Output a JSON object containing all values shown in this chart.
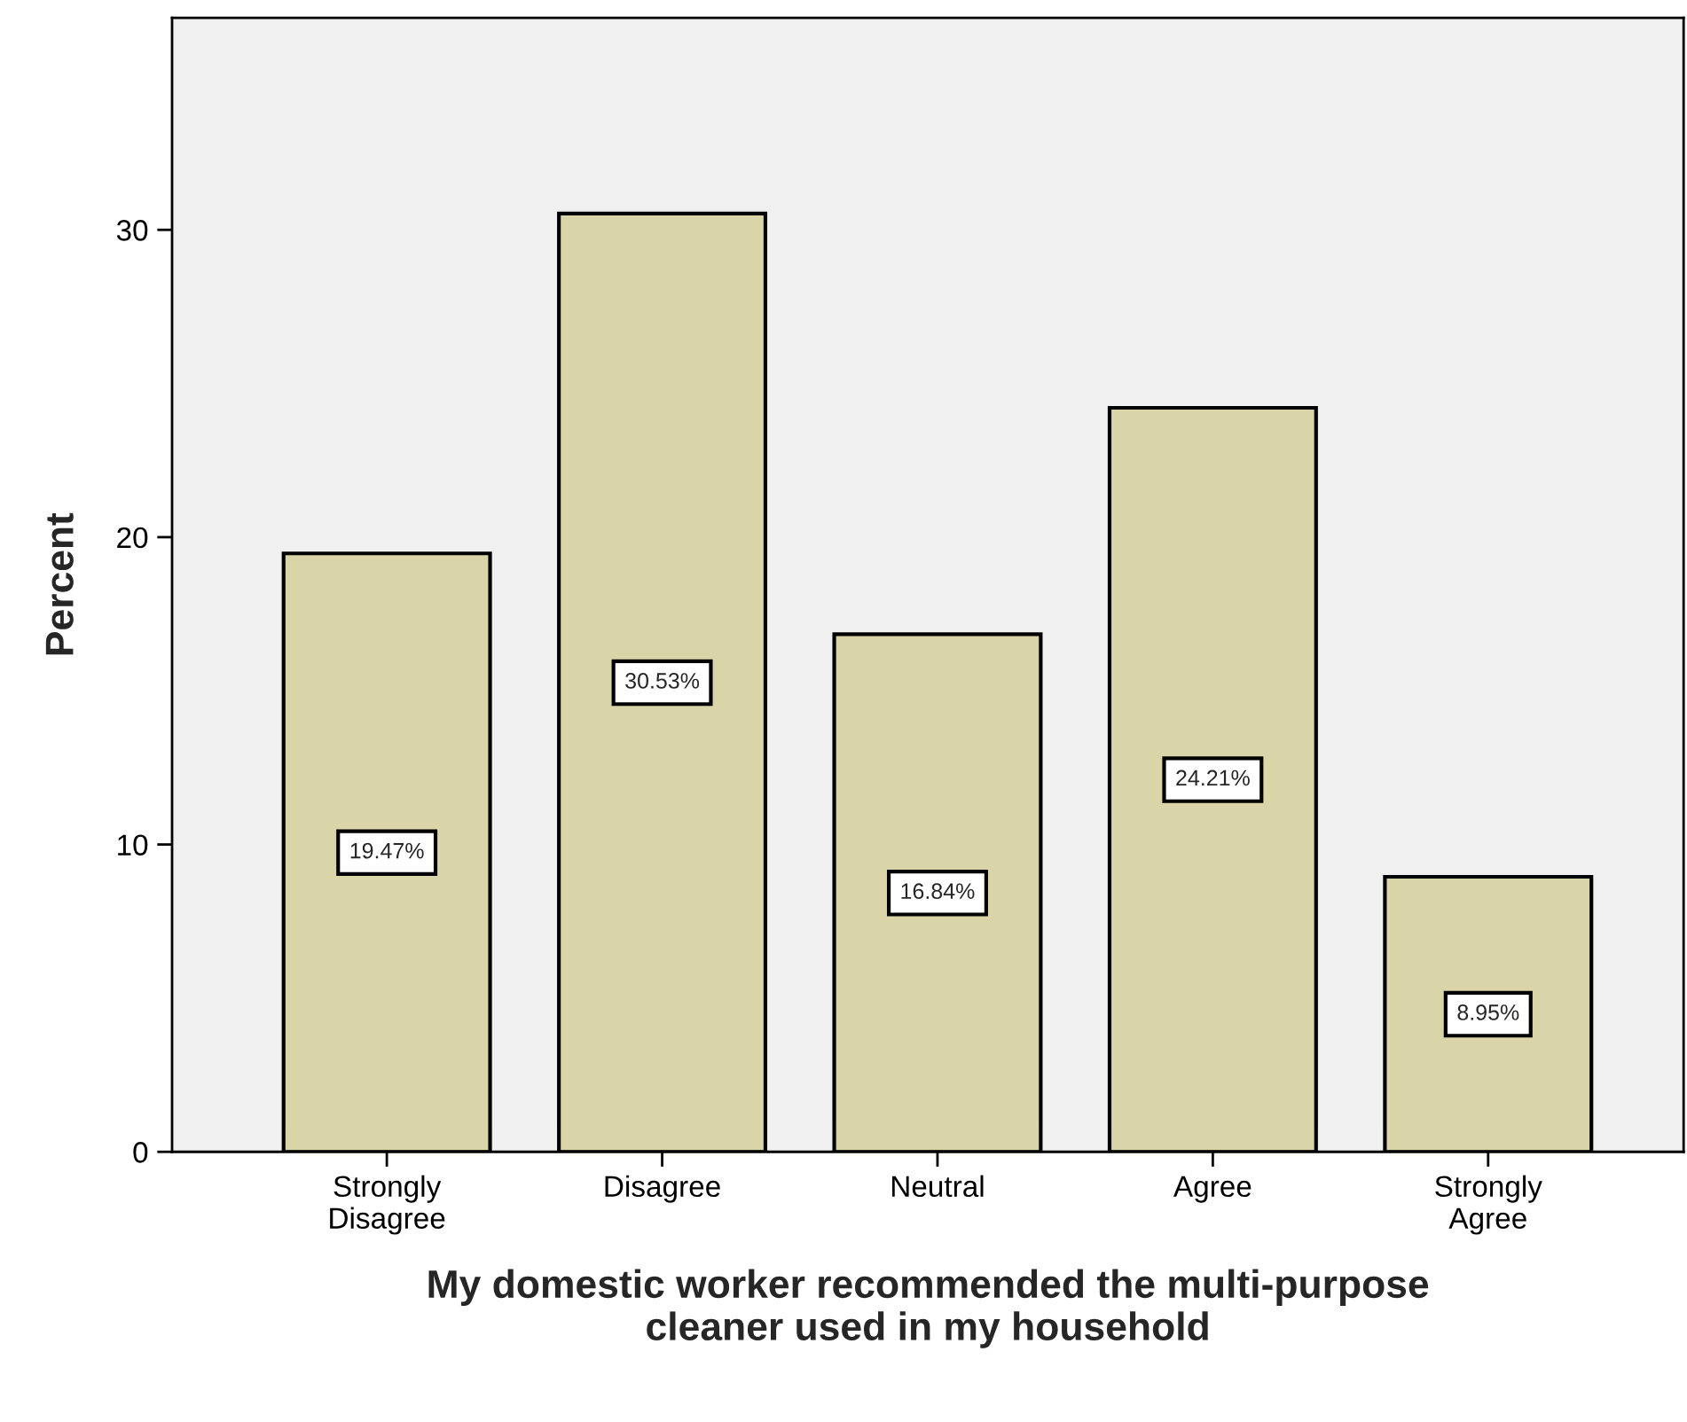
{
  "chart_data": {
    "type": "bar",
    "xlabel": "My domestic worker recommended the multi-purpose\ncleaner used in my household",
    "ylabel": "Percent",
    "categories": [
      "Strongly\nDisagree",
      "Disagree",
      "Neutral",
      "Agree",
      "Strongly\nAgree"
    ],
    "values": [
      19.47,
      30.53,
      16.84,
      24.21,
      8.95
    ],
    "value_labels": [
      "19.47%",
      "30.53%",
      "16.84%",
      "24.21%",
      "8.95%"
    ],
    "color": "#d9d5a8",
    "ylim": [
      0,
      36.9
    ],
    "yticks": [
      0,
      10,
      20,
      30
    ],
    "grid": false,
    "legend": false
  }
}
